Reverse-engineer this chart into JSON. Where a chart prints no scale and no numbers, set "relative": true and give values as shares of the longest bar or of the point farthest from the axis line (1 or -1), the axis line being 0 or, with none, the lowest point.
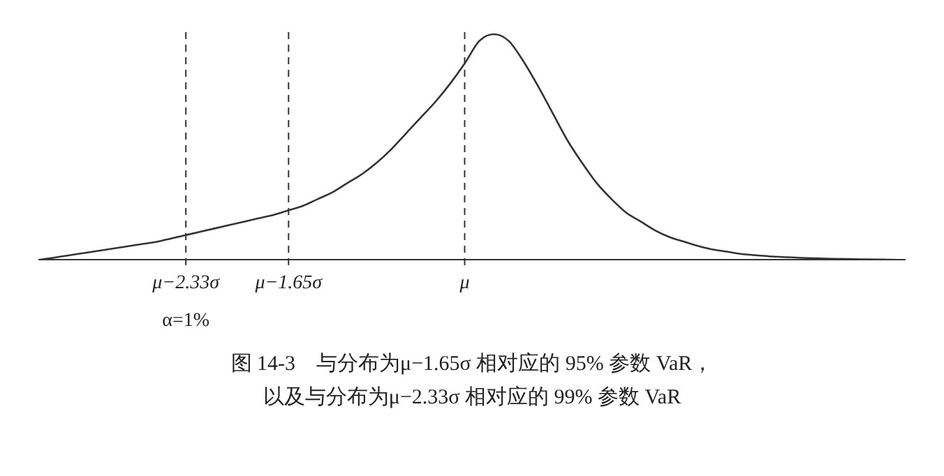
{
  "chart_data": {
    "type": "line",
    "relative": true,
    "title": "图 14-3　与分布为μ−1.65σ 相对应的 95% 参数 VaR，以及与分布为μ−2.33σ 相对应的 99% 参数 VaR",
    "categories": [
      null,
      null,
      null,
      null,
      null,
      null,
      null,
      null,
      null,
      null,
      "μ−2.33σ",
      null,
      null,
      null,
      null,
      null,
      null,
      "μ−1.65σ",
      null,
      null,
      null,
      null,
      null,
      null,
      null,
      null,
      null,
      null,
      null,
      "μ",
      null,
      null,
      null,
      null,
      null,
      null,
      null,
      null,
      null,
      null,
      null,
      null,
      null,
      null,
      null,
      null,
      null,
      null,
      null,
      null,
      null,
      null,
      null,
      null,
      null,
      null,
      null,
      null,
      null,
      null
    ],
    "series": [
      {
        "color": "#333333",
        "values": [
          0,
          0.01,
          0.02,
          0.03,
          0.04,
          0.05,
          0.06,
          0.07,
          0.08,
          0.095,
          0.11,
          0.125,
          0.14,
          0.155,
          0.17,
          0.185,
          0.2,
          0.22,
          0.24,
          0.27,
          0.3,
          0.34,
          0.38,
          0.43,
          0.49,
          0.56,
          0.63,
          0.7,
          0.78,
          0.87,
          0.97,
          1,
          0.97,
          0.88,
          0.77,
          0.65,
          0.53,
          0.43,
          0.34,
          0.27,
          0.21,
          0.17,
          0.13,
          0.1,
          0.08,
          0.06,
          0.045,
          0.035,
          0.025,
          0.02,
          0.015,
          0.012,
          0.009,
          0.007,
          0.005,
          0.004,
          0.003,
          0.002,
          0.001,
          0
        ]
      }
    ],
    "ref_lines": [
      {
        "axis": "x",
        "value": "μ−2.33σ",
        "line_style": "dashed"
      },
      {
        "axis": "x",
        "value": "μ−1.65σ",
        "line_style": "dashed"
      },
      {
        "axis": "x",
        "value": "μ",
        "line_style": "dashed"
      }
    ],
    "annotations": [
      "α=1%"
    ],
    "grid": false,
    "legend": false
  }
}
